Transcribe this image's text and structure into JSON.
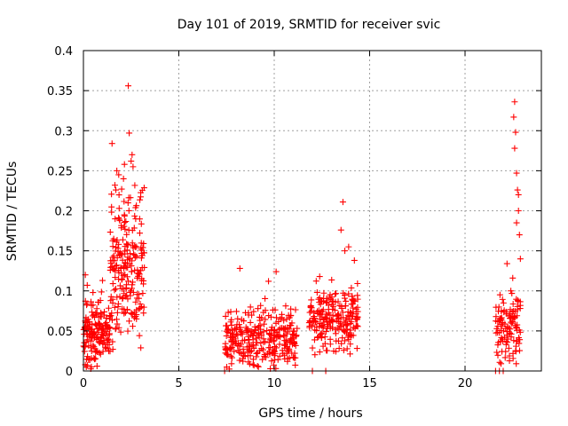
{
  "chart_data": {
    "type": "scatter",
    "title": "Day 101 of 2019, SRMTID for receiver svic",
    "xlabel": "GPS time / hours",
    "ylabel": "SRMTID / TECUs",
    "xlim": [
      0,
      24
    ],
    "ylim": [
      0,
      0.4
    ],
    "x_ticks": [
      0,
      5,
      10,
      15,
      20
    ],
    "x_tick_labels": [
      "0",
      "5",
      "10",
      "15",
      "20"
    ],
    "y_ticks": [
      0,
      0.05,
      0.1,
      0.15,
      0.2,
      0.25,
      0.3,
      0.35,
      0.4
    ],
    "y_tick_labels": [
      "0",
      "0.05",
      "0.1",
      "0.15",
      "0.2",
      "0.25",
      "0.3",
      "0.35",
      "0.4"
    ],
    "grid": true,
    "marker": "+",
    "series_color": "#ff0000",
    "series": [
      {
        "name": "SRMTID",
        "clusters": [
          {
            "x_range": [
              0.0,
              1.4
            ],
            "y_center": 0.045,
            "y_spread": 0.03,
            "count": 160,
            "seed": 11
          },
          {
            "x_range": [
              1.4,
              3.2
            ],
            "y_center": 0.13,
            "y_spread": 0.07,
            "count": 220,
            "seed": 23
          },
          {
            "x_range": [
              7.4,
              11.2
            ],
            "y_center": 0.04,
            "y_spread": 0.028,
            "count": 300,
            "seed": 37
          },
          {
            "x_range": [
              11.8,
              14.4
            ],
            "y_center": 0.065,
            "y_spread": 0.03,
            "count": 220,
            "seed": 41
          },
          {
            "x_range": [
              21.6,
              22.9
            ],
            "y_center": 0.055,
            "y_spread": 0.035,
            "count": 110,
            "seed": 53
          }
        ],
        "x": [
          2.35,
          2.4,
          1.5,
          2.55,
          2.5,
          2.6,
          2.15,
          1.75,
          1.85,
          2.1,
          1.65,
          1.7,
          0.1,
          0.2,
          1.0,
          13.6,
          13.5,
          13.9,
          13.7,
          14.2,
          8.2,
          10.1,
          9.7,
          22.6,
          22.55,
          22.65,
          22.6,
          22.7,
          22.75,
          22.8,
          22.8,
          22.7,
          22.85,
          22.9,
          22.2,
          22.5,
          22.4,
          0.5,
          0.15,
          7.4,
          12.0,
          12.7,
          21.6,
          21.8,
          22.0
        ],
        "y": [
          0.356,
          0.297,
          0.284,
          0.27,
          0.262,
          0.255,
          0.258,
          0.25,
          0.245,
          0.24,
          0.232,
          0.226,
          0.12,
          0.107,
          0.113,
          0.211,
          0.176,
          0.155,
          0.15,
          0.138,
          0.128,
          0.124,
          0.112,
          0.336,
          0.317,
          0.298,
          0.278,
          0.247,
          0.226,
          0.22,
          0.2,
          0.185,
          0.17,
          0.14,
          0.134,
          0.116,
          0.1,
          0.098,
          0.005,
          0.0,
          0.0,
          0.0,
          0.0,
          0.0,
          0.0
        ]
      }
    ]
  }
}
